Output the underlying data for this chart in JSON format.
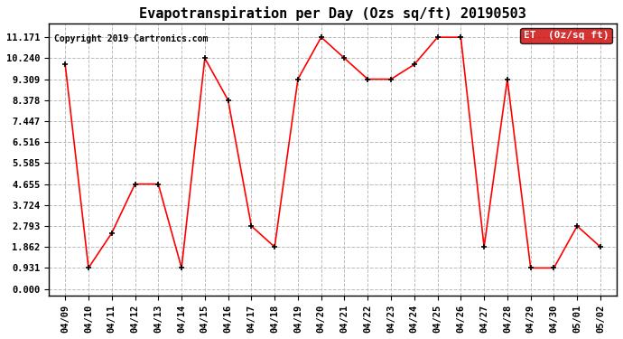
{
  "title": "Evapotranspiration per Day (Ozs sq/ft) 20190503",
  "copyright": "Copyright 2019 Cartronics.com",
  "legend_label": "ET  (0z/sq ft)",
  "dates": [
    "04/09",
    "04/10",
    "04/11",
    "04/12",
    "04/13",
    "04/14",
    "04/15",
    "04/16",
    "04/17",
    "04/18",
    "04/19",
    "04/20",
    "04/21",
    "04/22",
    "04/23",
    "04/24",
    "04/25",
    "04/26",
    "04/27",
    "04/28",
    "04/29",
    "04/30",
    "05/01",
    "05/02"
  ],
  "values": [
    9.96,
    0.931,
    2.48,
    4.655,
    4.655,
    0.931,
    10.24,
    8.378,
    2.793,
    1.862,
    9.309,
    11.171,
    10.24,
    9.309,
    9.309,
    9.96,
    11.171,
    11.171,
    1.862,
    9.309,
    0.931,
    0.931,
    2.793,
    1.862
  ],
  "yticks": [
    0.0,
    0.931,
    1.862,
    2.793,
    3.724,
    4.655,
    5.585,
    6.516,
    7.447,
    8.378,
    9.309,
    10.24,
    11.171
  ],
  "line_color": "#ff0000",
  "marker_color": "#000000",
  "legend_bg": "#cc0000",
  "legend_text_color": "#ffffff",
  "background_color": "#ffffff",
  "grid_color": "#bbbbbb",
  "title_fontsize": 11,
  "copyright_fontsize": 7,
  "tick_fontsize": 7.5,
  "legend_fontsize": 8,
  "fig_width": 6.9,
  "fig_height": 3.75,
  "dpi": 100
}
